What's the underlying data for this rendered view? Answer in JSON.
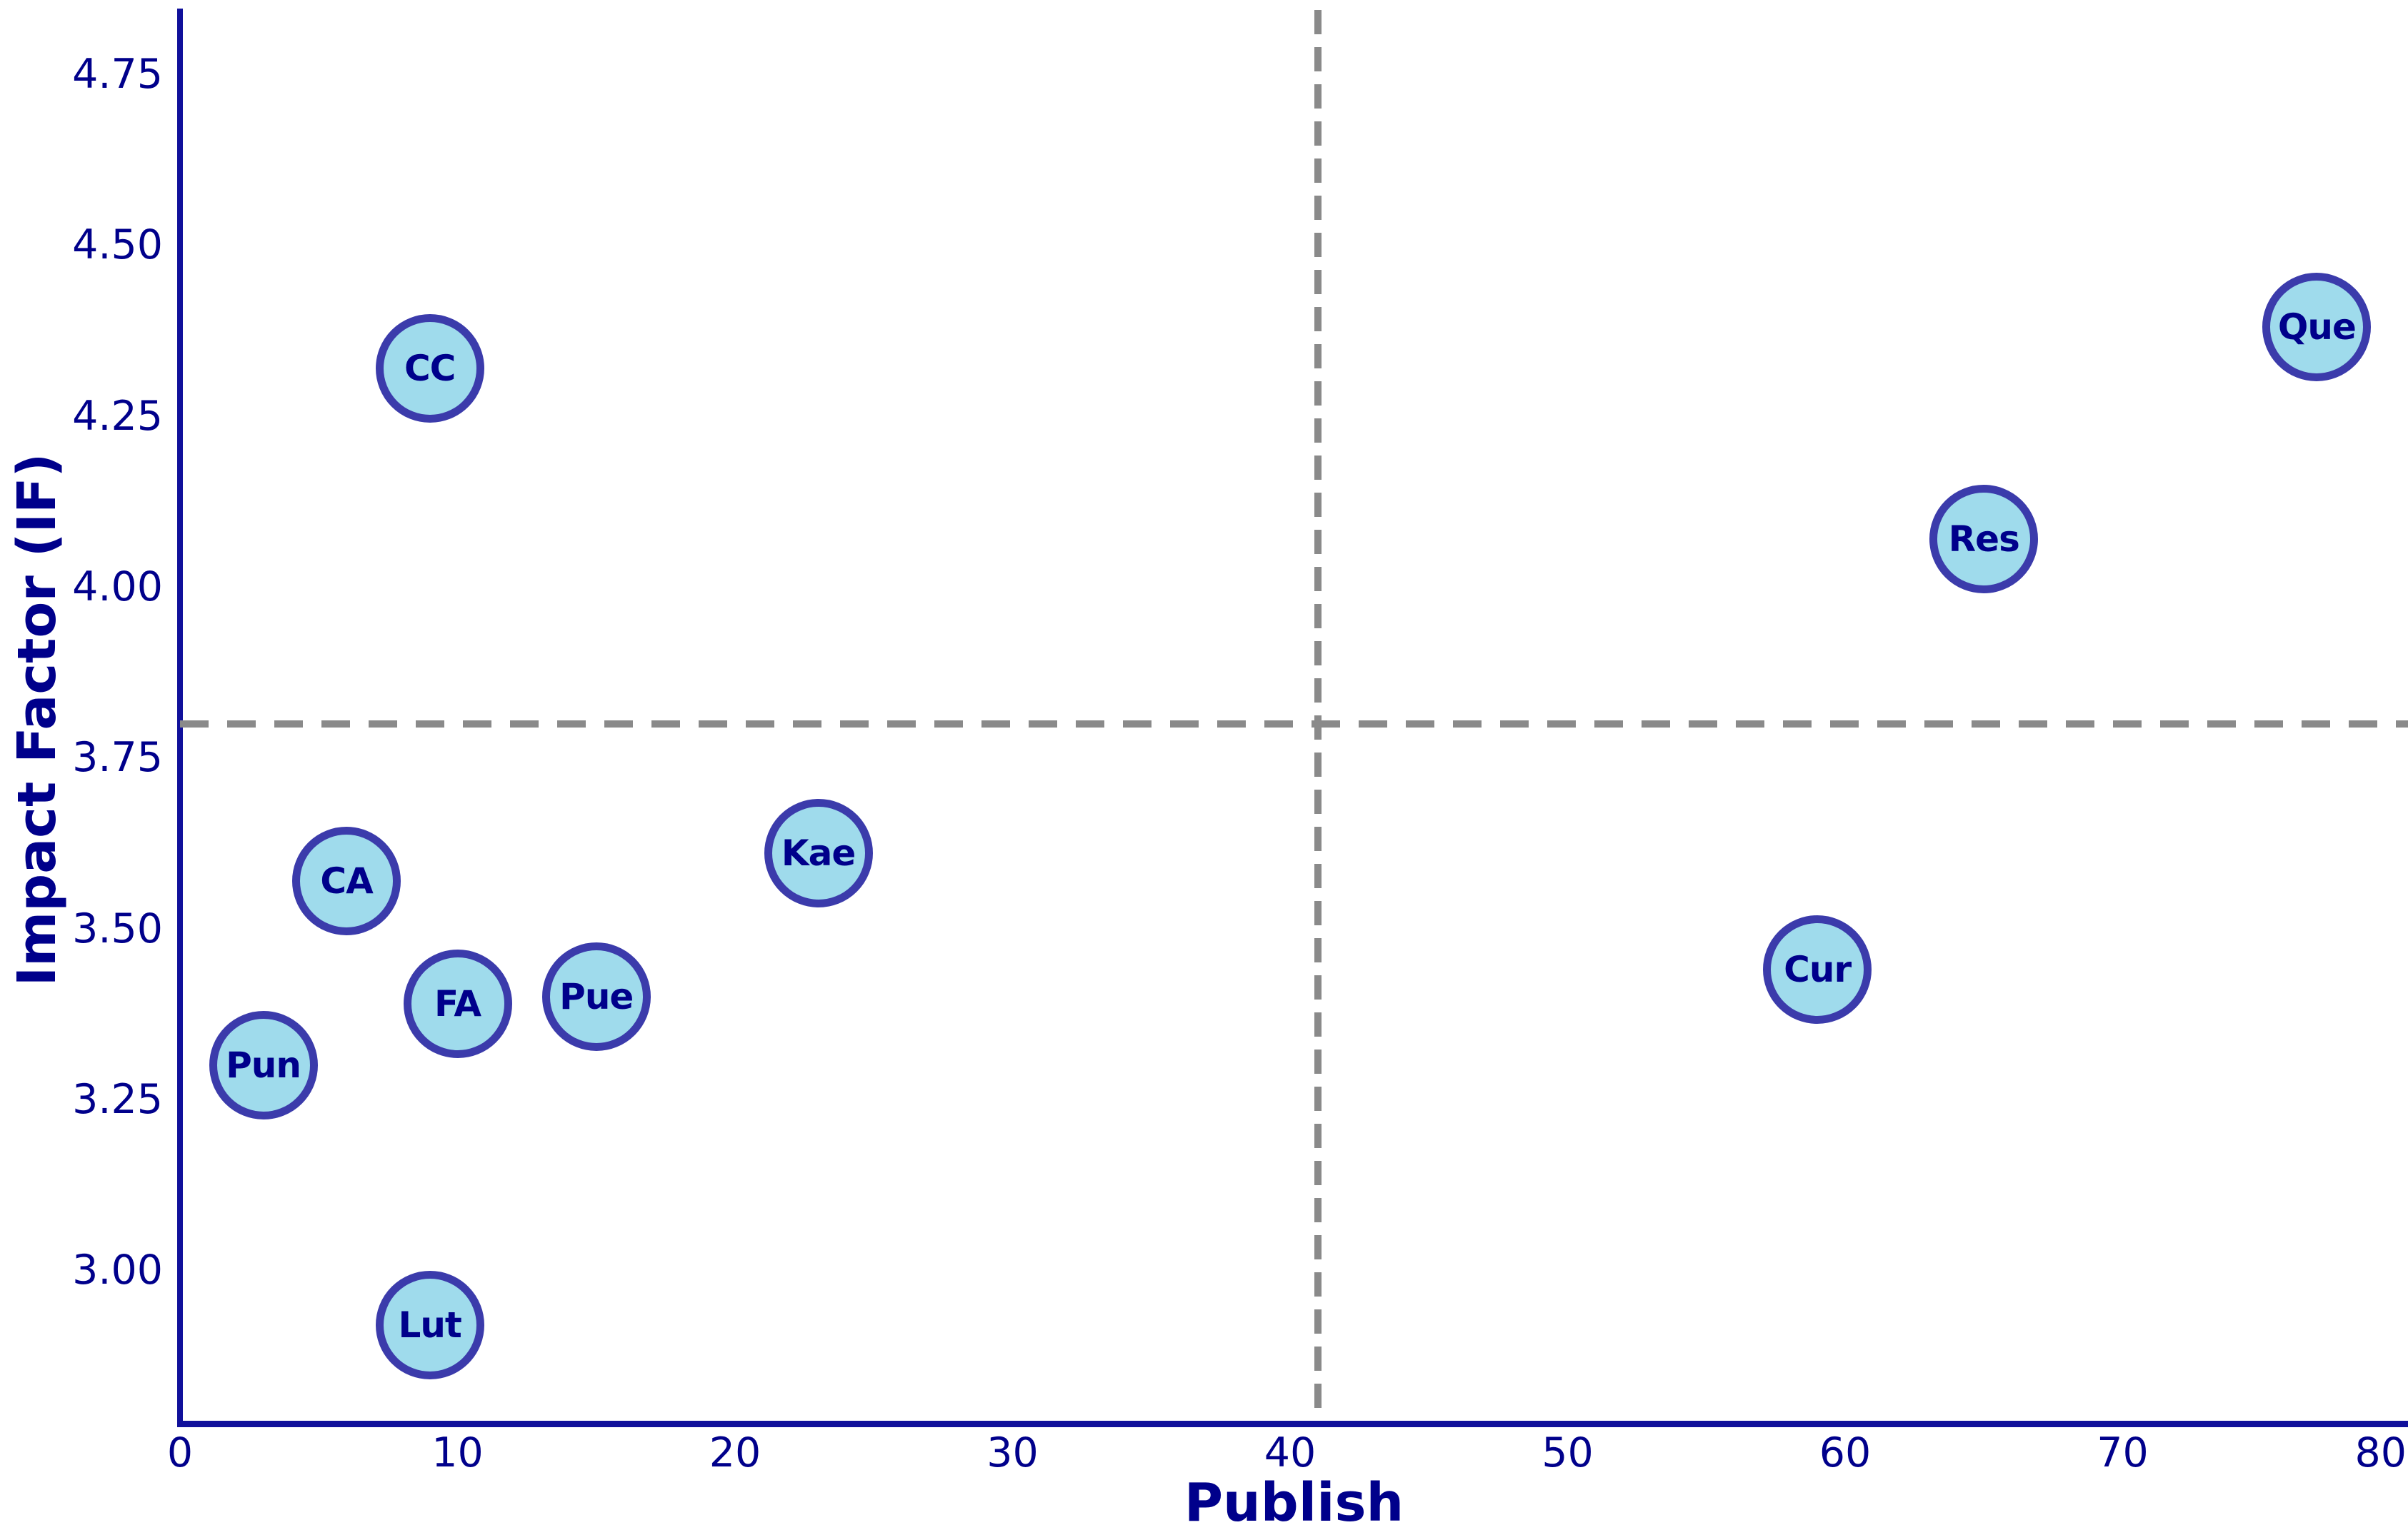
{
  "chart_data": {
    "type": "scatter",
    "title": "",
    "xlabel": "Publish",
    "ylabel": "Impact Factor (IF)",
    "xlim": [
      0,
      80
    ],
    "ylim": [
      2.78,
      4.84
    ],
    "grid": false,
    "legend": "none",
    "x_ticks": [
      {
        "value": 0,
        "label": "0"
      },
      {
        "value": 10,
        "label": "10"
      },
      {
        "value": 20,
        "label": "20"
      },
      {
        "value": 30,
        "label": "30"
      },
      {
        "value": 40,
        "label": "40"
      },
      {
        "value": 50,
        "label": "50"
      },
      {
        "value": 60,
        "label": "60"
      },
      {
        "value": 70,
        "label": "70"
      },
      {
        "value": 80,
        "label": "80"
      }
    ],
    "y_ticks": [
      {
        "value": 3.0,
        "label": "3.00"
      },
      {
        "value": 3.25,
        "label": "3.25"
      },
      {
        "value": 3.5,
        "label": "3.50"
      },
      {
        "value": 3.75,
        "label": "3.75"
      },
      {
        "value": 4.0,
        "label": "4.00"
      },
      {
        "value": 4.25,
        "label": "4.25"
      },
      {
        "value": 4.5,
        "label": "4.50"
      },
      {
        "value": 4.75,
        "label": "4.75"
      }
    ],
    "reference_lines": [
      {
        "orientation": "vertical",
        "x": 41,
        "style": "dashed",
        "color": "#8a8a8a"
      },
      {
        "orientation": "horizontal",
        "y": 3.8,
        "style": "dashed",
        "color": "#8a8a8a"
      }
    ],
    "points": [
      {
        "label": "CC",
        "x": 9,
        "y": 4.32
      },
      {
        "label": "Que",
        "x": 77,
        "y": 4.38
      },
      {
        "label": "Res",
        "x": 65,
        "y": 4.07
      },
      {
        "label": "Kae",
        "x": 23,
        "y": 3.61
      },
      {
        "label": "CA",
        "x": 6,
        "y": 3.57
      },
      {
        "label": "FA",
        "x": 10,
        "y": 3.39
      },
      {
        "label": "Pue",
        "x": 15,
        "y": 3.4
      },
      {
        "label": "Pun",
        "x": 3,
        "y": 3.3
      },
      {
        "label": "Cur",
        "x": 59,
        "y": 3.44
      },
      {
        "label": "Lut",
        "x": 9,
        "y": 2.92
      }
    ],
    "style": {
      "marker_fill": "#9fdbec",
      "marker_border": "#3b3bab",
      "marker_diameter_px": 152,
      "text_color": "#00008b",
      "axis_color": "#10109b",
      "dashed_line_color": "#8a8a8a",
      "background": "#ffffff"
    }
  }
}
